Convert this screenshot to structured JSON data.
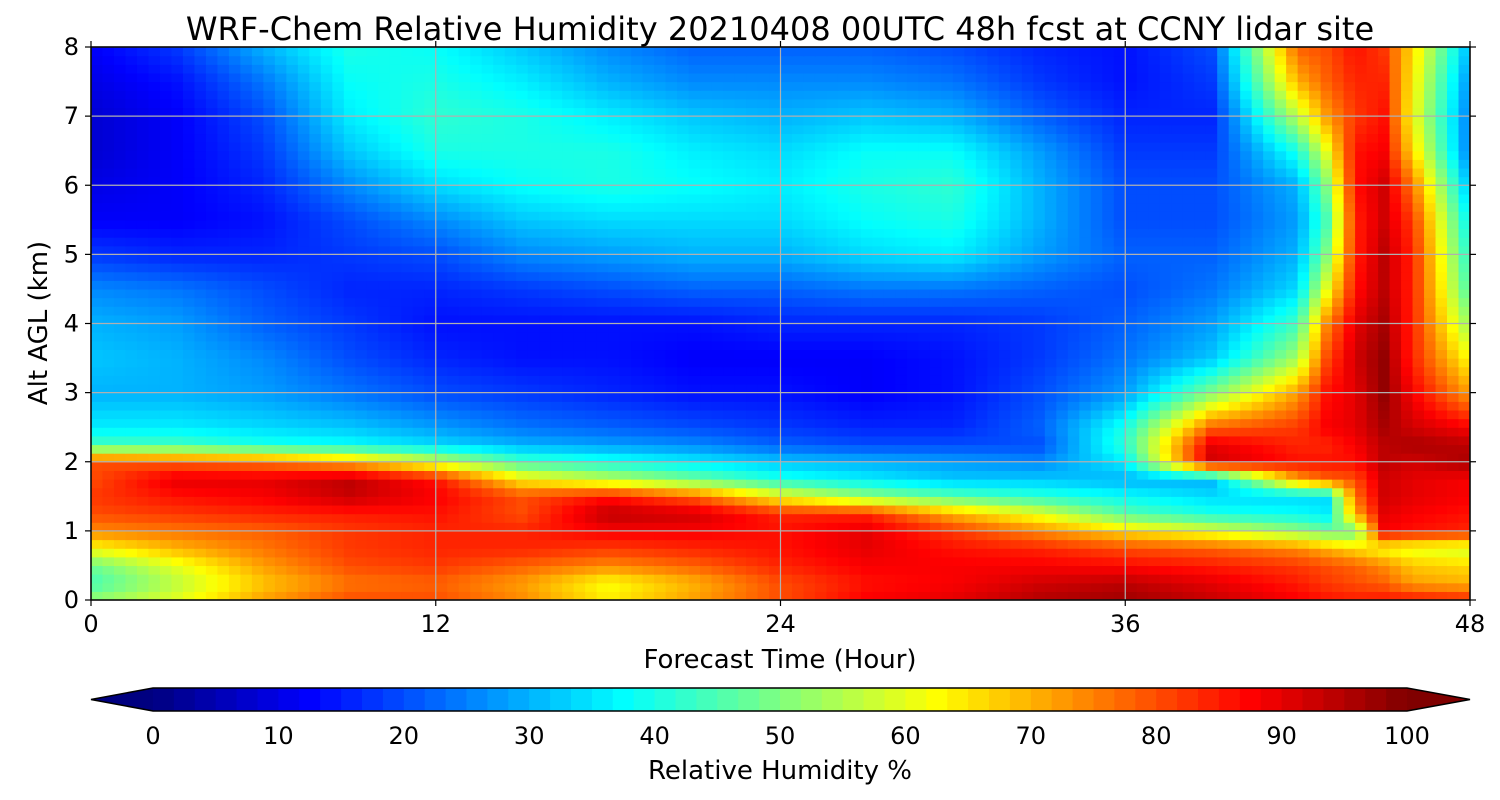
{
  "chart_data": {
    "type": "heatmap",
    "title": "WRF-Chem Relative Humidity 20210408 00UTC 48h fcst at CCNY lidar site",
    "xlabel": "Forecast Time (Hour)",
    "ylabel": "Alt AGL (km)",
    "xlim": [
      0,
      48
    ],
    "ylim": [
      0,
      8
    ],
    "x_ticks": [
      0,
      12,
      24,
      36,
      48
    ],
    "y_ticks": [
      0,
      1,
      2,
      3,
      4,
      5,
      6,
      7,
      8
    ],
    "grid": true,
    "colormap": "jet",
    "x": [
      0,
      3,
      6,
      9,
      12,
      15,
      18,
      21,
      24,
      27,
      30,
      33,
      36,
      39,
      42,
      43,
      44,
      45,
      46,
      48
    ],
    "y": [
      0,
      0.25,
      0.5,
      0.75,
      1,
      1.25,
      1.5,
      1.75,
      2,
      2.25,
      2.5,
      3,
      3.5,
      4,
      4.5,
      5,
      5.5,
      6,
      6.5,
      7,
      7.5,
      8
    ],
    "z": [
      [
        52,
        60,
        72,
        80,
        80,
        74,
        64,
        72,
        80,
        88,
        90,
        95,
        97,
        93,
        88,
        86,
        85,
        86,
        86,
        84
      ],
      [
        44,
        56,
        68,
        76,
        78,
        72,
        62,
        70,
        80,
        86,
        88,
        92,
        94,
        90,
        85,
        82,
        80,
        78,
        72,
        70
      ],
      [
        48,
        60,
        72,
        80,
        82,
        78,
        74,
        78,
        84,
        88,
        88,
        88,
        87,
        85,
        82,
        80,
        78,
        74,
        68,
        66
      ],
      [
        62,
        70,
        76,
        82,
        84,
        84,
        82,
        84,
        86,
        90,
        86,
        84,
        80,
        78,
        74,
        70,
        66,
        62,
        60,
        58
      ],
      [
        74,
        76,
        78,
        82,
        84,
        84,
        88,
        88,
        86,
        90,
        82,
        74,
        66,
        60,
        52,
        48,
        48,
        88,
        86,
        84
      ],
      [
        80,
        82,
        84,
        85,
        86,
        80,
        94,
        92,
        84,
        84,
        70,
        60,
        46,
        40,
        38,
        36,
        70,
        90,
        88,
        86
      ],
      [
        82,
        86,
        88,
        93,
        88,
        80,
        86,
        78,
        62,
        52,
        46,
        42,
        38,
        34,
        34,
        34,
        76,
        92,
        90,
        88
      ],
      [
        80,
        90,
        90,
        94,
        86,
        64,
        56,
        48,
        40,
        36,
        32,
        32,
        30,
        30,
        72,
        78,
        80,
        92,
        90,
        88
      ],
      [
        80,
        78,
        76,
        70,
        58,
        44,
        40,
        36,
        32,
        30,
        28,
        26,
        36,
        92,
        86,
        86,
        86,
        94,
        92,
        96
      ],
      [
        44,
        44,
        40,
        38,
        34,
        30,
        28,
        26,
        22,
        20,
        20,
        20,
        42,
        90,
        84,
        84,
        88,
        94,
        96,
        94
      ],
      [
        36,
        36,
        34,
        32,
        28,
        24,
        22,
        20,
        18,
        16,
        16,
        22,
        40,
        78,
        82,
        88,
        90,
        96,
        92,
        88
      ],
      [
        30,
        30,
        28,
        24,
        20,
        18,
        16,
        14,
        14,
        12,
        14,
        20,
        28,
        50,
        72,
        86,
        90,
        98,
        88,
        72
      ],
      [
        32,
        30,
        26,
        20,
        16,
        14,
        14,
        12,
        12,
        12,
        14,
        18,
        24,
        32,
        54,
        80,
        92,
        98,
        84,
        62
      ],
      [
        30,
        28,
        22,
        18,
        14,
        14,
        14,
        14,
        16,
        16,
        16,
        18,
        22,
        28,
        44,
        74,
        90,
        96,
        84,
        52
      ],
      [
        26,
        24,
        20,
        16,
        16,
        18,
        20,
        22,
        22,
        24,
        24,
        22,
        20,
        24,
        34,
        60,
        86,
        94,
        84,
        44
      ],
      [
        18,
        16,
        16,
        18,
        20,
        26,
        28,
        30,
        30,
        34,
        36,
        28,
        22,
        22,
        30,
        50,
        84,
        94,
        84,
        40
      ],
      [
        12,
        12,
        14,
        20,
        26,
        32,
        34,
        34,
        34,
        38,
        40,
        30,
        20,
        20,
        28,
        44,
        84,
        92,
        82,
        36
      ],
      [
        10,
        12,
        16,
        26,
        34,
        38,
        40,
        38,
        36,
        40,
        42,
        30,
        20,
        20,
        30,
        50,
        86,
        92,
        76,
        30
      ],
      [
        8,
        12,
        18,
        32,
        40,
        40,
        40,
        36,
        34,
        38,
        38,
        28,
        18,
        18,
        40,
        60,
        86,
        88,
        66,
        24
      ],
      [
        8,
        12,
        20,
        36,
        42,
        40,
        36,
        32,
        30,
        32,
        30,
        22,
        16,
        16,
        56,
        72,
        82,
        86,
        62,
        24
      ],
      [
        10,
        14,
        24,
        38,
        40,
        36,
        30,
        26,
        26,
        26,
        24,
        18,
        14,
        18,
        70,
        78,
        84,
        84,
        64,
        26
      ],
      [
        12,
        18,
        30,
        40,
        38,
        32,
        26,
        22,
        22,
        22,
        20,
        16,
        14,
        20,
        78,
        80,
        86,
        82,
        66,
        30
      ]
    ],
    "colorbar": {
      "label": "Relative Humidity %",
      "range": [
        0,
        100
      ],
      "ticks": [
        0,
        10,
        20,
        30,
        40,
        50,
        60,
        70,
        80,
        90,
        100
      ],
      "extend": "both",
      "levels": 60
    }
  }
}
